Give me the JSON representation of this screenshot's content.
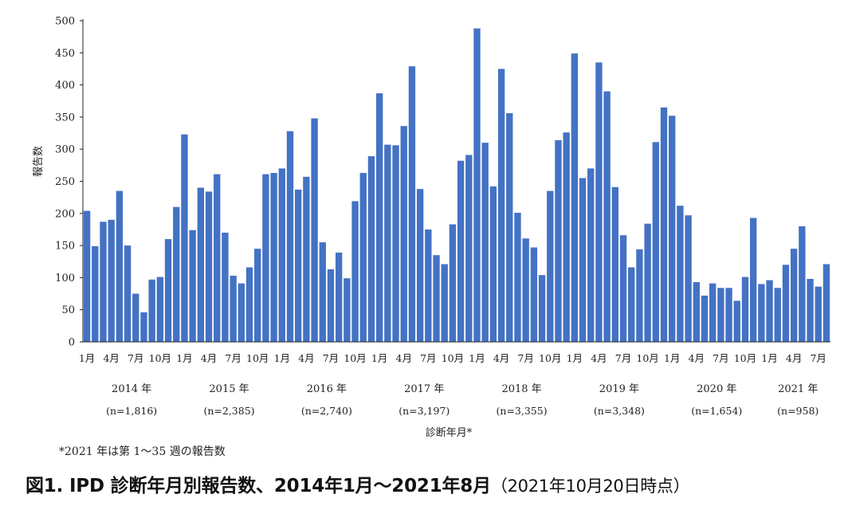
{
  "chart_data": {
    "type": "bar",
    "ylabel": "報告数",
    "xlabel": "診断年月*",
    "ylim": [
      0,
      500
    ],
    "yticks": [
      0,
      50,
      100,
      150,
      200,
      250,
      300,
      350,
      400,
      450,
      500
    ],
    "grid": false,
    "x_tick_labels": [
      "1月",
      "4月",
      "7月",
      "10月"
    ],
    "years": [
      {
        "label": "2014 年",
        "n": "(n=1,816)"
      },
      {
        "label": "2015 年",
        "n": "(n=2,385)"
      },
      {
        "label": "2016 年",
        "n": "(n=2,740)"
      },
      {
        "label": "2017 年",
        "n": "(n=3,197)"
      },
      {
        "label": "2018 年",
        "n": "(n=3,355)"
      },
      {
        "label": "2019 年",
        "n": "(n=3,348)"
      },
      {
        "label": "2020 年",
        "n": "(n=1,654)"
      },
      {
        "label": "2021 年",
        "n": "(n=958)"
      }
    ],
    "values": [
      204,
      149,
      187,
      190,
      235,
      150,
      75,
      46,
      97,
      101,
      160,
      210,
      323,
      174,
      240,
      234,
      261,
      170,
      103,
      91,
      116,
      145,
      261,
      263,
      270,
      328,
      237,
      257,
      348,
      155,
      113,
      139,
      99,
      219,
      263,
      289,
      387,
      307,
      306,
      336,
      429,
      238,
      175,
      135,
      121,
      183,
      282,
      291,
      488,
      310,
      242,
      425,
      356,
      201,
      161,
      147,
      104,
      235,
      314,
      326,
      449,
      255,
      270,
      435,
      390,
      241,
      166,
      116,
      144,
      184,
      311,
      365,
      352,
      212,
      197,
      93,
      72,
      91,
      84,
      84,
      64,
      101,
      193,
      90,
      96,
      84,
      120,
      145,
      180,
      98,
      86,
      121
    ],
    "color": "#4472C4"
  },
  "footnote": "*2021 年は第 1～35 週の報告数",
  "caption": {
    "main": "図1. IPD 診断年月別報告数、2014年1月～2021年8月",
    "sub": "（2021年10月20日時点）"
  }
}
